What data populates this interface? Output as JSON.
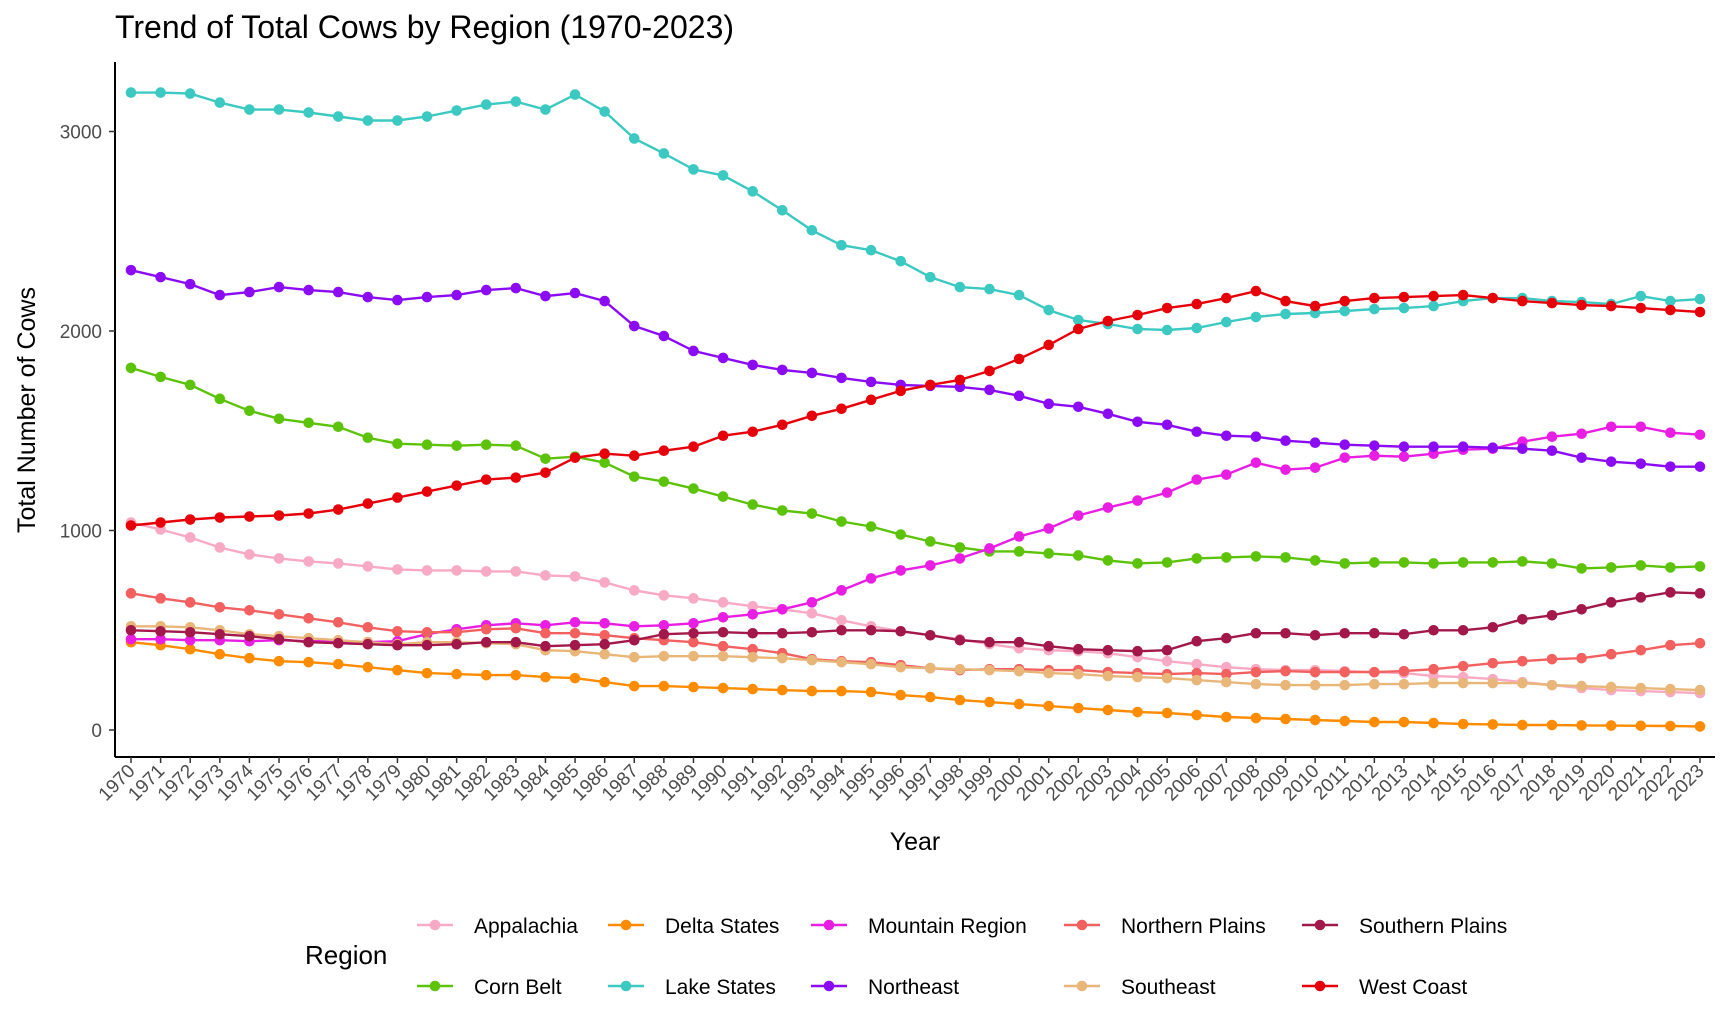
{
  "chart_data": {
    "type": "line",
    "title": "Trend of Total Cows by Region (1970-2023)",
    "xlabel": "Year",
    "ylabel": "Total Number of Cows",
    "xlim": [
      1970,
      2023
    ],
    "ylim": [
      0,
      3200
    ],
    "yticks": [
      0,
      1000,
      2000,
      3000
    ],
    "x": [
      1970,
      1971,
      1972,
      1973,
      1974,
      1975,
      1976,
      1977,
      1978,
      1979,
      1980,
      1981,
      1982,
      1983,
      1984,
      1985,
      1986,
      1987,
      1988,
      1989,
      1990,
      1991,
      1992,
      1993,
      1994,
      1995,
      1996,
      1997,
      1998,
      1999,
      2000,
      2001,
      2002,
      2003,
      2004,
      2005,
      2006,
      2007,
      2008,
      2009,
      2010,
      2011,
      2012,
      2013,
      2014,
      2015,
      2016,
      2017,
      2018,
      2019,
      2020,
      2021,
      2022,
      2023
    ],
    "grid": false,
    "markers": true,
    "legend": {
      "title": "Region",
      "position": "bottom"
    },
    "series": [
      {
        "name": "Appalachia",
        "color": "#F8A9C3",
        "values": [
          1040,
          1005,
          965,
          915,
          880,
          860,
          845,
          835,
          820,
          805,
          800,
          800,
          795,
          795,
          775,
          770,
          740,
          700,
          675,
          660,
          640,
          620,
          605,
          585,
          550,
          520,
          495,
          475,
          455,
          430,
          410,
          400,
          395,
          385,
          365,
          345,
          330,
          315,
          305,
          300,
          300,
          295,
          290,
          285,
          270,
          265,
          255,
          240,
          225,
          210,
          200,
          195,
          190,
          185
        ]
      },
      {
        "name": "Corn Belt",
        "color": "#5CC20A",
        "values": [
          1815,
          1770,
          1730,
          1660,
          1600,
          1560,
          1540,
          1520,
          1465,
          1435,
          1430,
          1425,
          1430,
          1425,
          1360,
          1370,
          1340,
          1270,
          1245,
          1210,
          1170,
          1130,
          1100,
          1085,
          1045,
          1020,
          980,
          945,
          915,
          895,
          895,
          885,
          875,
          850,
          835,
          840,
          860,
          865,
          870,
          865,
          850,
          835,
          840,
          840,
          835,
          840,
          840,
          845,
          835,
          810,
          815,
          825,
          815,
          820
        ]
      },
      {
        "name": "Delta States",
        "color": "#FF8C00",
        "values": [
          440,
          425,
          405,
          380,
          360,
          345,
          340,
          330,
          315,
          300,
          285,
          280,
          275,
          275,
          265,
          260,
          240,
          220,
          220,
          215,
          210,
          205,
          200,
          195,
          195,
          190,
          175,
          165,
          150,
          140,
          130,
          120,
          110,
          100,
          90,
          85,
          75,
          65,
          60,
          55,
          50,
          45,
          40,
          40,
          35,
          30,
          28,
          25,
          25,
          23,
          22,
          21,
          20,
          18
        ]
      },
      {
        "name": "Lake States",
        "color": "#3BC9C1",
        "values": [
          3195,
          3195,
          3190,
          3145,
          3110,
          3110,
          3095,
          3075,
          3055,
          3055,
          3075,
          3105,
          3135,
          3150,
          3110,
          3185,
          3100,
          2965,
          2890,
          2810,
          2780,
          2700,
          2605,
          2505,
          2430,
          2405,
          2350,
          2270,
          2220,
          2210,
          2180,
          2105,
          2055,
          2035,
          2010,
          2005,
          2015,
          2045,
          2070,
          2085,
          2090,
          2100,
          2110,
          2115,
          2125,
          2150,
          2165,
          2165,
          2150,
          2145,
          2135,
          2175,
          2150,
          2160
        ]
      },
      {
        "name": "Mountain Region",
        "color": "#E91EE3",
        "values": [
          455,
          455,
          450,
          450,
          445,
          450,
          445,
          445,
          440,
          445,
          480,
          505,
          525,
          535,
          525,
          540,
          535,
          520,
          525,
          535,
          565,
          580,
          605,
          640,
          700,
          760,
          800,
          825,
          860,
          910,
          970,
          1010,
          1075,
          1115,
          1150,
          1190,
          1255,
          1280,
          1340,
          1305,
          1315,
          1365,
          1375,
          1370,
          1385,
          1405,
          1410,
          1445,
          1470,
          1485,
          1520,
          1520,
          1490,
          1480
        ]
      },
      {
        "name": "Northeast",
        "color": "#8B0CF3",
        "values": [
          2305,
          2270,
          2235,
          2180,
          2195,
          2220,
          2205,
          2195,
          2170,
          2155,
          2170,
          2180,
          2205,
          2215,
          2175,
          2190,
          2150,
          2025,
          1975,
          1900,
          1865,
          1830,
          1805,
          1790,
          1765,
          1745,
          1730,
          1725,
          1720,
          1705,
          1675,
          1635,
          1620,
          1585,
          1545,
          1530,
          1495,
          1475,
          1470,
          1450,
          1440,
          1430,
          1425,
          1420,
          1420,
          1420,
          1415,
          1410,
          1400,
          1365,
          1345,
          1335,
          1320,
          1320
        ]
      },
      {
        "name": "Northern Plains",
        "color": "#F26060",
        "values": [
          685,
          660,
          640,
          615,
          600,
          580,
          560,
          540,
          515,
          495,
          490,
          490,
          505,
          510,
          485,
          485,
          475,
          460,
          450,
          440,
          420,
          405,
          385,
          355,
          345,
          340,
          325,
          310,
          300,
          305,
          305,
          300,
          300,
          290,
          285,
          280,
          285,
          280,
          290,
          295,
          290,
          290,
          290,
          295,
          305,
          320,
          335,
          345,
          355,
          360,
          380,
          400,
          425,
          435
        ]
      },
      {
        "name": "Southeast",
        "color": "#E8B678",
        "values": [
          520,
          520,
          515,
          500,
          480,
          470,
          460,
          450,
          440,
          430,
          440,
          440,
          435,
          430,
          400,
          395,
          380,
          365,
          370,
          370,
          370,
          365,
          360,
          350,
          340,
          330,
          315,
          310,
          305,
          300,
          295,
          285,
          280,
          270,
          265,
          260,
          250,
          240,
          230,
          225,
          225,
          225,
          230,
          230,
          235,
          235,
          235,
          235,
          225,
          220,
          215,
          210,
          205,
          200
        ]
      },
      {
        "name": "Southern Plains",
        "color": "#A3184B",
        "values": [
          500,
          495,
          490,
          480,
          470,
          455,
          440,
          435,
          430,
          425,
          425,
          430,
          440,
          440,
          420,
          425,
          430,
          450,
          480,
          485,
          490,
          485,
          485,
          490,
          500,
          500,
          495,
          475,
          450,
          440,
          440,
          420,
          405,
          400,
          395,
          400,
          445,
          460,
          485,
          485,
          475,
          485,
          485,
          480,
          500,
          500,
          515,
          555,
          575,
          605,
          640,
          665,
          690,
          685
        ]
      },
      {
        "name": "West Coast",
        "color": "#E6000A",
        "values": [
          1025,
          1040,
          1055,
          1065,
          1070,
          1075,
          1085,
          1105,
          1135,
          1165,
          1195,
          1225,
          1255,
          1265,
          1290,
          1365,
          1385,
          1375,
          1400,
          1420,
          1475,
          1495,
          1530,
          1575,
          1610,
          1655,
          1700,
          1730,
          1755,
          1800,
          1860,
          1930,
          2010,
          2050,
          2080,
          2115,
          2135,
          2165,
          2200,
          2150,
          2125,
          2150,
          2165,
          2170,
          2175,
          2180,
          2165,
          2150,
          2140,
          2130,
          2125,
          2115,
          2105,
          2095
        ]
      }
    ]
  }
}
